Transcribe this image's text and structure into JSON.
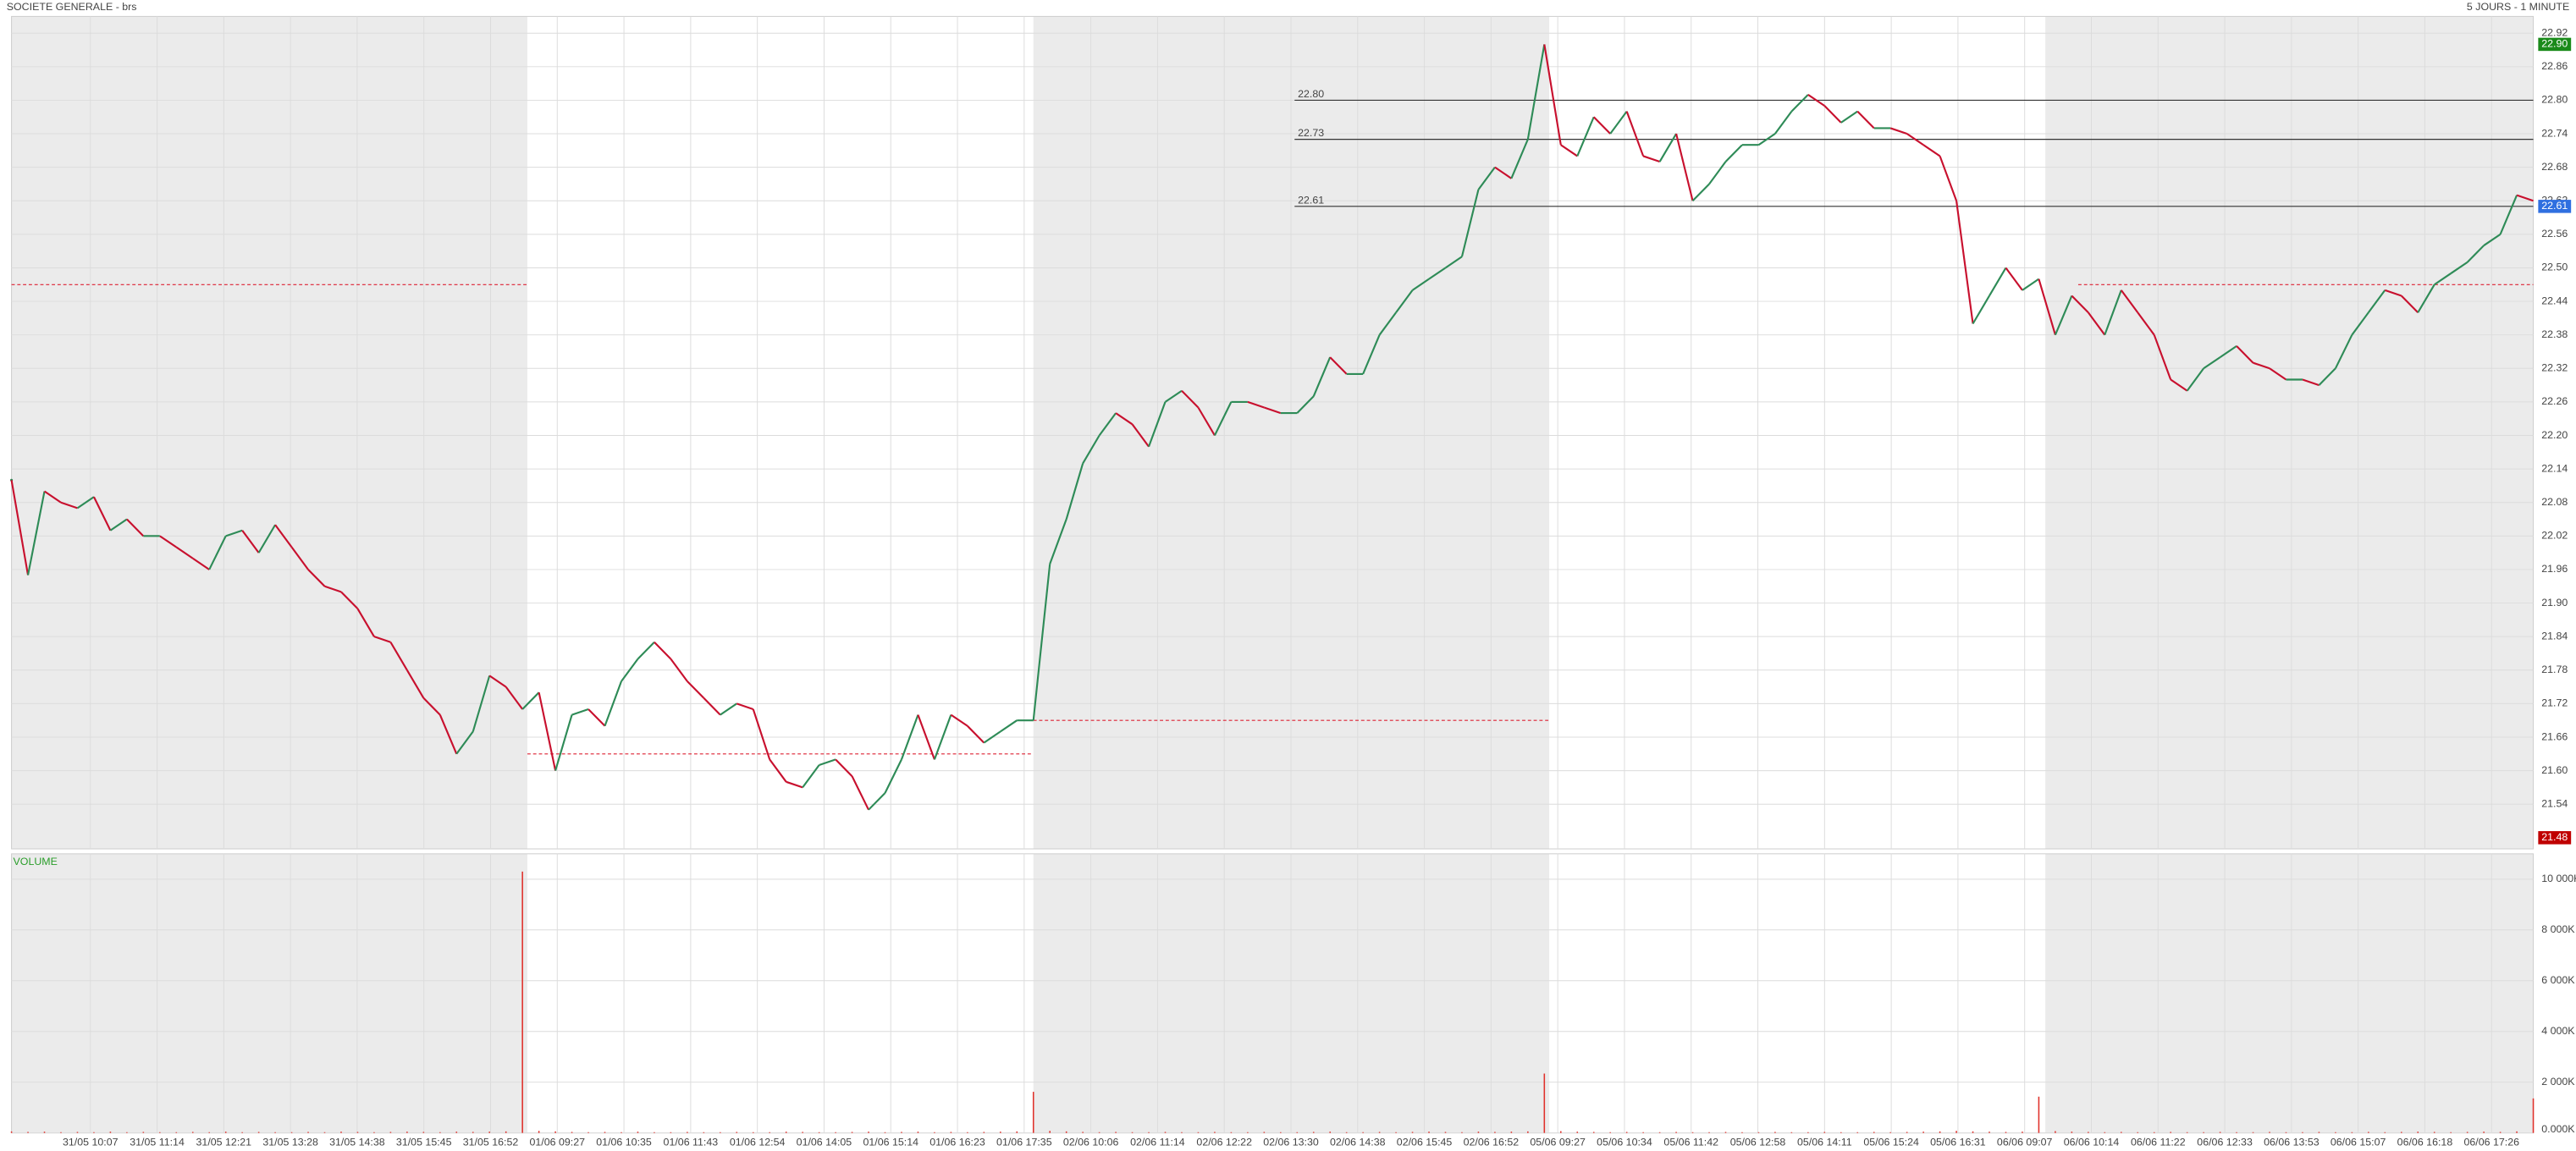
{
  "chart_data": {
    "type": "line",
    "title": "SOCIETE GENERALE - brs",
    "subtitle": "5 JOURS - 1 MINUTE",
    "up_color": "#2e8b57",
    "down_color": "#c8102e",
    "grid": true,
    "ylim": [
      21.46,
      22.95
    ],
    "yticks": [
      21.54,
      {
        "value": 21.6,
        "label": "21.60"
      },
      21.66,
      21.72,
      21.78,
      21.84,
      {
        "value": 21.9,
        "label": "21.90"
      },
      21.96,
      22.02,
      22.08,
      22.14,
      {
        "value": 22.2,
        "label": "22.20"
      },
      22.26,
      22.32,
      22.38,
      22.44,
      {
        "value": 22.5,
        "label": "22.50"
      },
      22.56,
      22.62,
      22.68,
      22.74,
      {
        "value": 22.8,
        "label": "22.80"
      },
      22.86,
      22.92
    ],
    "xticks": [
      "31/05 10:07",
      "31/05 11:14",
      "31/05 12:21",
      "31/05 13:28",
      "31/05 14:38",
      "31/05 15:45",
      "31/05 16:52",
      "01/06 09:27",
      "01/06 10:35",
      "01/06 11:43",
      "01/06 12:54",
      "01/06 14:05",
      "01/06 15:14",
      "01/06 16:23",
      "01/06 17:35",
      "02/06 10:06",
      "02/06 11:14",
      "02/06 12:22",
      "02/06 13:30",
      "02/06 14:38",
      "02/06 15:45",
      "02/06 16:52",
      "05/06 09:27",
      "05/06 10:34",
      "05/06 11:42",
      "05/06 12:58",
      "05/06 14:11",
      "05/06 15:24",
      "05/06 16:31",
      "06/06 09:07",
      "06/06 10:14",
      "06/06 11:22",
      "06/06 12:33",
      "06/06 13:53",
      "06/06 15:07",
      "06/06 16:18",
      "06/06 17:26"
    ],
    "values": [
      22.12,
      21.95,
      22.1,
      22.08,
      22.07,
      22.09,
      22.03,
      22.05,
      22.02,
      22.02,
      22.0,
      21.98,
      21.96,
      22.02,
      22.03,
      21.99,
      22.04,
      22.0,
      21.96,
      21.93,
      21.92,
      21.89,
      21.84,
      21.83,
      21.78,
      21.73,
      21.7,
      21.63,
      21.67,
      21.77,
      21.75,
      21.71,
      21.74,
      21.6,
      21.7,
      21.71,
      21.68,
      21.76,
      21.8,
      21.83,
      21.8,
      21.76,
      21.73,
      21.7,
      21.72,
      21.71,
      21.62,
      21.58,
      21.57,
      21.61,
      21.62,
      21.59,
      21.53,
      21.56,
      21.62,
      21.7,
      21.62,
      21.7,
      21.68,
      21.65,
      21.67,
      21.69,
      21.69,
      21.97,
      22.05,
      22.15,
      22.2,
      22.24,
      22.22,
      22.18,
      22.26,
      22.28,
      22.25,
      22.2,
      22.26,
      22.26,
      22.25,
      22.24,
      22.24,
      22.27,
      22.34,
      22.31,
      22.31,
      22.38,
      22.42,
      22.46,
      22.48,
      22.5,
      22.52,
      22.64,
      22.68,
      22.66,
      22.73,
      22.9,
      22.72,
      22.7,
      22.77,
      22.74,
      22.78,
      22.7,
      22.69,
      22.74,
      22.62,
      22.65,
      22.69,
      22.72,
      22.72,
      22.74,
      22.78,
      22.81,
      22.79,
      22.76,
      22.78,
      22.75,
      22.75,
      22.74,
      22.72,
      22.7,
      22.62,
      22.4,
      22.45,
      22.5,
      22.46,
      22.48,
      22.38,
      22.45,
      22.42,
      22.38,
      22.46,
      22.42,
      22.38,
      22.3,
      22.28,
      22.32,
      22.34,
      22.36,
      22.33,
      22.32,
      22.3,
      22.3,
      22.29,
      22.32,
      22.38,
      22.42,
      22.46,
      22.45,
      22.42,
      22.47,
      22.49,
      22.51,
      22.54,
      22.56,
      22.63,
      22.62
    ],
    "levels": [
      {
        "value": 22.8,
        "label": "22.80"
      },
      {
        "value": 22.73,
        "label": "22.73"
      },
      {
        "value": 22.61,
        "label": "22.61"
      }
    ],
    "badges": [
      {
        "value": 22.9,
        "label": "22.90",
        "color": "#1a8a1a"
      },
      {
        "value": 22.61,
        "label": "22.61",
        "color": "#2f6fe0"
      },
      {
        "value": 21.48,
        "label": "21.48",
        "color": "#c00000"
      }
    ],
    "reference_lines": [
      22.47,
      21.63,
      21.69,
      22.47
    ],
    "volume": {
      "title": "VOLUME",
      "color": "#e0302a",
      "ylim": [
        0,
        11000
      ],
      "yticks": [
        {
          "value": 0,
          "label": "0.000K"
        },
        {
          "value": 2000,
          "label": "2 000K"
        },
        {
          "value": 4000,
          "label": "4 000K"
        },
        {
          "value": 6000,
          "label": "6 000K"
        },
        {
          "value": 8000,
          "label": "8 000K"
        },
        {
          "value": 10000,
          "label": "10 000K"
        }
      ],
      "values": [
        60,
        40,
        50,
        30,
        40,
        30,
        50,
        30,
        40,
        30,
        30,
        40,
        30,
        50,
        30,
        40,
        30,
        30,
        40,
        30,
        50,
        40,
        30,
        40,
        50,
        40,
        30,
        50,
        40,
        50,
        60,
        10300,
        80,
        60,
        40,
        30,
        40,
        30,
        50,
        30,
        30,
        40,
        30,
        30,
        40,
        30,
        30,
        50,
        40,
        30,
        30,
        40,
        50,
        30,
        40,
        50,
        30,
        40,
        30,
        40,
        50,
        60,
        1620,
        80,
        60,
        40,
        30,
        40,
        30,
        30,
        40,
        30,
        30,
        40,
        30,
        30,
        40,
        30,
        30,
        40,
        50,
        30,
        30,
        40,
        30,
        40,
        50,
        40,
        30,
        50,
        40,
        50,
        60,
        2340,
        70,
        50,
        40,
        30,
        40,
        30,
        30,
        40,
        30,
        30,
        40,
        30,
        30,
        40,
        30,
        30,
        40,
        30,
        30,
        40,
        30,
        40,
        50,
        60,
        80,
        60,
        50,
        40,
        50,
        1430,
        70,
        50,
        40,
        30,
        40,
        30,
        30,
        40,
        30,
        30,
        40,
        30,
        30,
        40,
        30,
        30,
        40,
        30,
        30,
        40,
        30,
        40,
        50,
        40,
        30,
        40,
        50,
        40,
        60,
        1360
      ]
    }
  }
}
